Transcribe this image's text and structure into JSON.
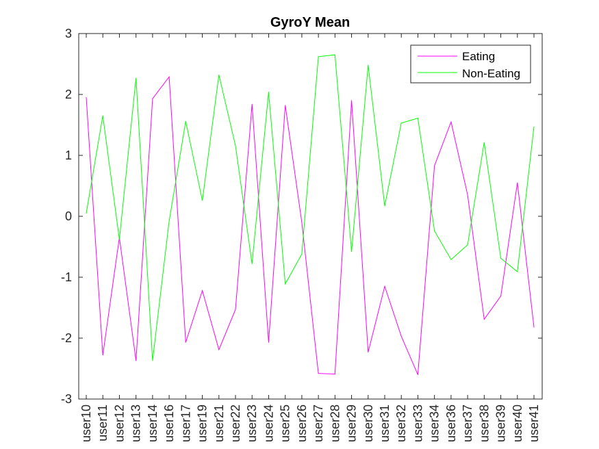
{
  "chart_data": {
    "type": "line",
    "title": "GyroY Mean",
    "xlabel": "",
    "ylabel": "",
    "categories": [
      "user10",
      "user11",
      "user12",
      "user13",
      "user14",
      "user16",
      "user17",
      "user19",
      "user21",
      "user22",
      "user23",
      "user24",
      "user25",
      "user26",
      "user27",
      "user28",
      "user29",
      "user30",
      "user31",
      "user32",
      "user33",
      "user34",
      "user36",
      "user37",
      "user38",
      "user39",
      "user40",
      "user41"
    ],
    "ylim": [
      -3,
      3
    ],
    "yticks": [
      -3,
      -2,
      -1,
      0,
      1,
      2,
      3
    ],
    "series": [
      {
        "name": "Eating",
        "color": "#ff00ff",
        "values": [
          1.95,
          -2.28,
          -0.35,
          -2.37,
          1.93,
          2.29,
          -2.07,
          -1.22,
          -2.19,
          -1.53,
          1.84,
          -2.07,
          1.82,
          -0.1,
          -2.58,
          -2.59,
          1.9,
          -2.23,
          -1.15,
          -1.97,
          -2.6,
          0.83,
          1.55,
          0.35,
          -1.69,
          -1.31,
          0.55,
          -1.82
        ]
      },
      {
        "name": "Non-Eating",
        "color": "#00ff00",
        "values": [
          0.05,
          1.65,
          -0.38,
          2.27,
          -2.37,
          -0.08,
          1.56,
          0.26,
          2.32,
          1.16,
          -0.78,
          2.04,
          -1.11,
          -0.62,
          2.62,
          2.65,
          -0.58,
          2.48,
          0.17,
          1.53,
          1.61,
          -0.24,
          -0.71,
          -0.47,
          1.21,
          -0.69,
          -0.91,
          1.47
        ]
      }
    ],
    "legend": {
      "position": "top-right"
    },
    "grid": false
  }
}
